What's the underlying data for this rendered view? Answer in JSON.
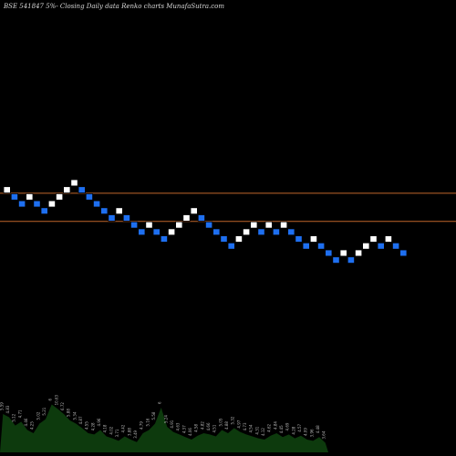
{
  "title": "BSE 541847 5%-  Closing Daily data  Renko  charts MunafaSutra.com",
  "colors": {
    "background": "#000000",
    "up_brick": "#ffffff",
    "down_brick": "#1e6ff0",
    "brick_border": "#000000",
    "reference_line": "#c0662a",
    "volume_fill": "#0d3a0d",
    "volume_labels": "#b5b5b5"
  },
  "chart_data": {
    "type": "renko",
    "title": "BSE 541847 5%-  Closing Daily data  Renko  charts MunafaSutra.com",
    "xlabel": "",
    "ylabel": "",
    "grid": false,
    "legend": "none",
    "reference_line_levels": [
      12,
      8
    ],
    "bricks": [
      {
        "dir": "up",
        "level": 12
      },
      {
        "dir": "down",
        "level": 11
      },
      {
        "dir": "down",
        "level": 10
      },
      {
        "dir": "up",
        "level": 11
      },
      {
        "dir": "down",
        "level": 10
      },
      {
        "dir": "down",
        "level": 9
      },
      {
        "dir": "up",
        "level": 10
      },
      {
        "dir": "up",
        "level": 11
      },
      {
        "dir": "up",
        "level": 12
      },
      {
        "dir": "up",
        "level": 13
      },
      {
        "dir": "down",
        "level": 12
      },
      {
        "dir": "down",
        "level": 11
      },
      {
        "dir": "down",
        "level": 10
      },
      {
        "dir": "down",
        "level": 9
      },
      {
        "dir": "down",
        "level": 8
      },
      {
        "dir": "up",
        "level": 9
      },
      {
        "dir": "down",
        "level": 8
      },
      {
        "dir": "down",
        "level": 7
      },
      {
        "dir": "down",
        "level": 6
      },
      {
        "dir": "up",
        "level": 7
      },
      {
        "dir": "down",
        "level": 6
      },
      {
        "dir": "down",
        "level": 5
      },
      {
        "dir": "up",
        "level": 6
      },
      {
        "dir": "up",
        "level": 7
      },
      {
        "dir": "up",
        "level": 8
      },
      {
        "dir": "up",
        "level": 9
      },
      {
        "dir": "down",
        "level": 8
      },
      {
        "dir": "down",
        "level": 7
      },
      {
        "dir": "down",
        "level": 6
      },
      {
        "dir": "down",
        "level": 5
      },
      {
        "dir": "down",
        "level": 4
      },
      {
        "dir": "up",
        "level": 5
      },
      {
        "dir": "up",
        "level": 6
      },
      {
        "dir": "up",
        "level": 7
      },
      {
        "dir": "down",
        "level": 6
      },
      {
        "dir": "up",
        "level": 7
      },
      {
        "dir": "down",
        "level": 6
      },
      {
        "dir": "up",
        "level": 7
      },
      {
        "dir": "down",
        "level": 6
      },
      {
        "dir": "down",
        "level": 5
      },
      {
        "dir": "down",
        "level": 4
      },
      {
        "dir": "up",
        "level": 5
      },
      {
        "dir": "down",
        "level": 4
      },
      {
        "dir": "down",
        "level": 3
      },
      {
        "dir": "down",
        "level": 2
      },
      {
        "dir": "up",
        "level": 3
      },
      {
        "dir": "down",
        "level": 2
      },
      {
        "dir": "up",
        "level": 3
      },
      {
        "dir": "up",
        "level": 4
      },
      {
        "dir": "up",
        "level": 5
      },
      {
        "dir": "down",
        "level": 4
      },
      {
        "dir": "up",
        "level": 5
      },
      {
        "dir": "down",
        "level": 4
      },
      {
        "dir": "down",
        "level": 3
      }
    ],
    "volume": [
      {
        "value": 0.6,
        "label": "5.59"
      },
      {
        "value": 0.55,
        "label": "4.83"
      },
      {
        "value": 0.42,
        "label": "5.12"
      },
      {
        "value": 0.48,
        "label": "4.71"
      },
      {
        "value": 0.35,
        "label": "4.46"
      },
      {
        "value": 0.3,
        "label": "4.25"
      },
      {
        "value": 0.45,
        "label": "5.02"
      },
      {
        "value": 0.52,
        "label": "5.21"
      },
      {
        "value": 0.75,
        "label": "6"
      },
      {
        "value": 0.68,
        "label": "10.63"
      },
      {
        "value": 0.6,
        "label": "6.72"
      },
      {
        "value": 0.5,
        "label": "5.88"
      },
      {
        "value": 0.45,
        "label": "5.34"
      },
      {
        "value": 0.38,
        "label": "4.87"
      },
      {
        "value": 0.3,
        "label": "4.55"
      },
      {
        "value": 0.28,
        "label": "4.28"
      },
      {
        "value": 0.35,
        "label": "4.96"
      },
      {
        "value": 0.25,
        "label": "4.18"
      },
      {
        "value": 0.22,
        "label": "4.02"
      },
      {
        "value": 0.18,
        "label": "3.71"
      },
      {
        "value": 0.25,
        "label": "4.42"
      },
      {
        "value": 0.2,
        "label": "3.88"
      },
      {
        "value": 0.16,
        "label": "3.49"
      },
      {
        "value": 0.3,
        "label": "4.79"
      },
      {
        "value": 0.35,
        "label": "5.16"
      },
      {
        "value": 0.45,
        "label": "5.58"
      },
      {
        "value": 0.7,
        "label": "6"
      },
      {
        "value": 0.4,
        "label": "5.24"
      },
      {
        "value": 0.32,
        "label": "4.91"
      },
      {
        "value": 0.28,
        "label": "4.63"
      },
      {
        "value": 0.24,
        "label": "4.37"
      },
      {
        "value": 0.2,
        "label": "4.06"
      },
      {
        "value": 0.26,
        "label": "4.58"
      },
      {
        "value": 0.3,
        "label": "4.82"
      },
      {
        "value": 0.28,
        "label": "4.66"
      },
      {
        "value": 0.25,
        "label": "4.51"
      },
      {
        "value": 0.35,
        "label": "5.05"
      },
      {
        "value": 0.3,
        "label": "4.88"
      },
      {
        "value": 0.38,
        "label": "5.32"
      },
      {
        "value": 0.32,
        "label": "4.97"
      },
      {
        "value": 0.28,
        "label": "4.73"
      },
      {
        "value": 0.25,
        "label": "4.54"
      },
      {
        "value": 0.22,
        "label": "4.31"
      },
      {
        "value": 0.2,
        "label": "4.12"
      },
      {
        "value": 0.26,
        "label": "4.62"
      },
      {
        "value": 0.3,
        "label": "4.84"
      },
      {
        "value": 0.24,
        "label": "4.45"
      },
      {
        "value": 0.28,
        "label": "4.69"
      },
      {
        "value": 0.22,
        "label": "4.28"
      },
      {
        "value": 0.26,
        "label": "4.57"
      },
      {
        "value": 0.2,
        "label": "4.09"
      },
      {
        "value": 0.18,
        "label": "3.96"
      },
      {
        "value": 0.24,
        "label": "4.48"
      },
      {
        "value": 0.15,
        "label": "3.64"
      }
    ]
  }
}
